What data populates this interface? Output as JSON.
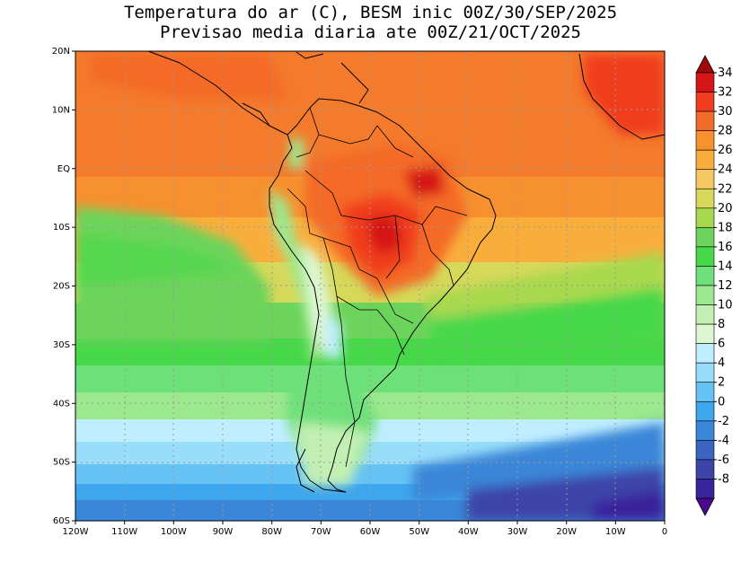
{
  "title_line1": "Temperatura do ar (C), BESM inic 00Z/30/SEP/2025",
  "title_line2": "Previsao media diaria ate 00Z/21/OCT/2025",
  "lat_labels": [
    "20N",
    "10N",
    "EQ",
    "10S",
    "20S",
    "30S",
    "40S",
    "50S",
    "60S"
  ],
  "lon_labels": [
    "120W",
    "110W",
    "100W",
    "90W",
    "80W",
    "70W",
    "60W",
    "50W",
    "40W",
    "30W",
    "20W",
    "10W",
    "0"
  ],
  "colorbar": {
    "levels": [
      "34",
      "32",
      "30",
      "28",
      "26",
      "24",
      "22",
      "20",
      "18",
      "16",
      "14",
      "12",
      "10",
      "8",
      "6",
      "4",
      "2",
      "0",
      "-2",
      "-4",
      "-6",
      "-8"
    ],
    "colors": [
      "#a00a0a",
      "#d61616",
      "#f03c1e",
      "#f46a28",
      "#f7902e",
      "#f9ae3c",
      "#f5c864",
      "#d6d85a",
      "#a8d84e",
      "#6cd45a",
      "#46d848",
      "#6ee07a",
      "#9ce88e",
      "#c2f0b2",
      "#dcf6d0",
      "#bfeeff",
      "#98defa",
      "#66c2f4",
      "#3ea6ec",
      "#3a86d8",
      "#3a64c0",
      "#3c44a8",
      "#3a249c",
      "#4a0a8c"
    ]
  },
  "map": {
    "extent": {
      "lon": [
        -120,
        0
      ],
      "lat": [
        -60,
        20
      ]
    },
    "field": "Temperatura do ar (C)",
    "color_key": {
      "hottest": "#d61616",
      "tropical": "#f46a28",
      "subtropical": "#f9ae3c",
      "mid_lat": "#46d848",
      "cool": "#c2f0b2",
      "cold": "#66c2f4",
      "coldest": "#3c44a8"
    }
  }
}
